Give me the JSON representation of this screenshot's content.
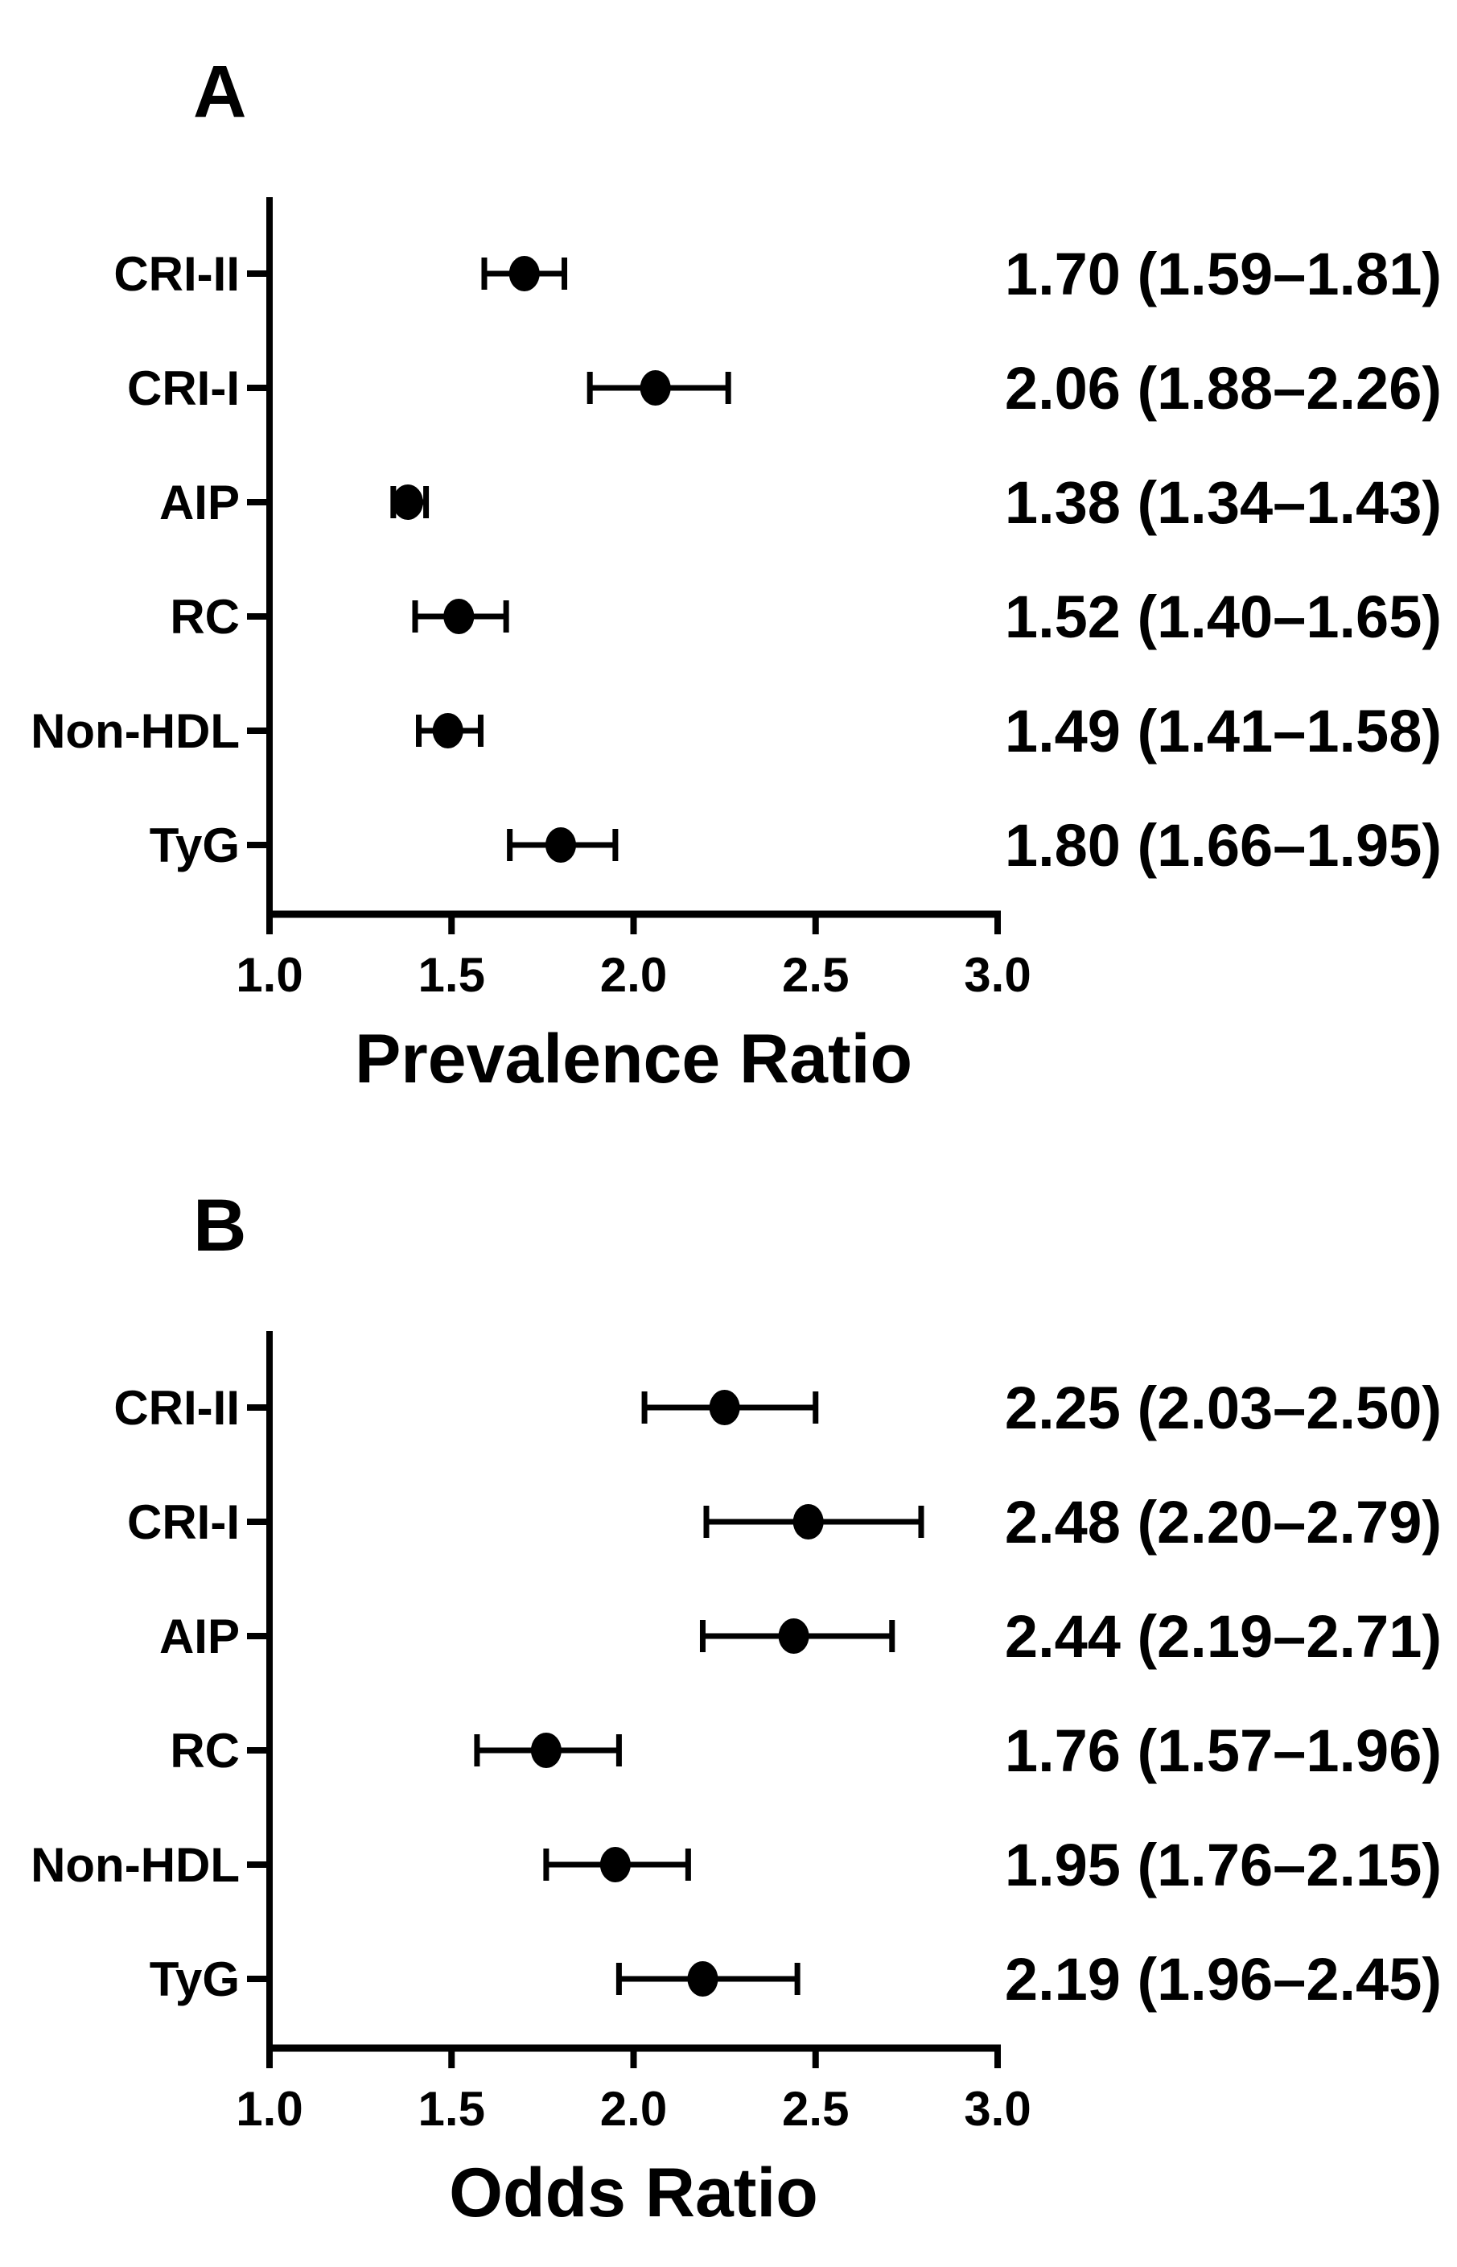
{
  "figure": {
    "description": "Two-panel forest plot of lipid indices",
    "colors": {
      "foreground": "#000000",
      "background": "#ffffff"
    }
  },
  "chart_data": [
    {
      "type": "scatter",
      "subtype": "forest-dot-ci",
      "panel_label": "A",
      "xlabel": "Prevalence Ratio",
      "xlim": [
        1.0,
        3.0
      ],
      "xtick_values": [
        1.0,
        1.5,
        2.0,
        2.5,
        3.0
      ],
      "xtick_labels": [
        "1.0",
        "1.5",
        "2.0",
        "2.5",
        "3.0"
      ],
      "grid": false,
      "legend": false,
      "categories": [
        "CRI-II",
        "CRI-I",
        "AIP",
        "RC",
        "Non-HDL",
        "TyG"
      ],
      "points": [
        {
          "category": "CRI-II",
          "estimate": 1.7,
          "ci_low": 1.59,
          "ci_high": 1.81,
          "label": "1.70 (1.59–1.81)"
        },
        {
          "category": "CRI-I",
          "estimate": 2.06,
          "ci_low": 1.88,
          "ci_high": 2.26,
          "label": "2.06 (1.88–2.26)"
        },
        {
          "category": "AIP",
          "estimate": 1.38,
          "ci_low": 1.34,
          "ci_high": 1.43,
          "label": "1.38 (1.34–1.43)"
        },
        {
          "category": "RC",
          "estimate": 1.52,
          "ci_low": 1.4,
          "ci_high": 1.65,
          "label": "1.52 (1.40–1.65)"
        },
        {
          "category": "Non-HDL",
          "estimate": 1.49,
          "ci_low": 1.41,
          "ci_high": 1.58,
          "label": "1.49 (1.41–1.58)"
        },
        {
          "category": "TyG",
          "estimate": 1.8,
          "ci_low": 1.66,
          "ci_high": 1.95,
          "label": "1.80 (1.66–1.95)"
        }
      ]
    },
    {
      "type": "scatter",
      "subtype": "forest-dot-ci",
      "panel_label": "B",
      "xlabel": "Odds Ratio",
      "xlim": [
        1.0,
        3.0
      ],
      "xtick_values": [
        1.0,
        1.5,
        2.0,
        2.5,
        3.0
      ],
      "xtick_labels": [
        "1.0",
        "1.5",
        "2.0",
        "2.5",
        "3.0"
      ],
      "grid": false,
      "legend": false,
      "categories": [
        "CRI-II",
        "CRI-I",
        "AIP",
        "RC",
        "Non-HDL",
        "TyG"
      ],
      "points": [
        {
          "category": "CRI-II",
          "estimate": 2.25,
          "ci_low": 2.03,
          "ci_high": 2.5,
          "label": "2.25 (2.03–2.50)"
        },
        {
          "category": "CRI-I",
          "estimate": 2.48,
          "ci_low": 2.2,
          "ci_high": 2.79,
          "label": "2.48 (2.20–2.79)"
        },
        {
          "category": "AIP",
          "estimate": 2.44,
          "ci_low": 2.19,
          "ci_high": 2.71,
          "label": "2.44 (2.19–2.71)"
        },
        {
          "category": "RC",
          "estimate": 1.76,
          "ci_low": 1.57,
          "ci_high": 1.96,
          "label": "1.76 (1.57–1.96)"
        },
        {
          "category": "Non-HDL",
          "estimate": 1.95,
          "ci_low": 1.76,
          "ci_high": 2.15,
          "label": "1.95 (1.76–2.15)"
        },
        {
          "category": "TyG",
          "estimate": 2.19,
          "ci_low": 1.96,
          "ci_high": 2.45,
          "label": "2.19 (1.96–2.45)"
        }
      ]
    }
  ]
}
